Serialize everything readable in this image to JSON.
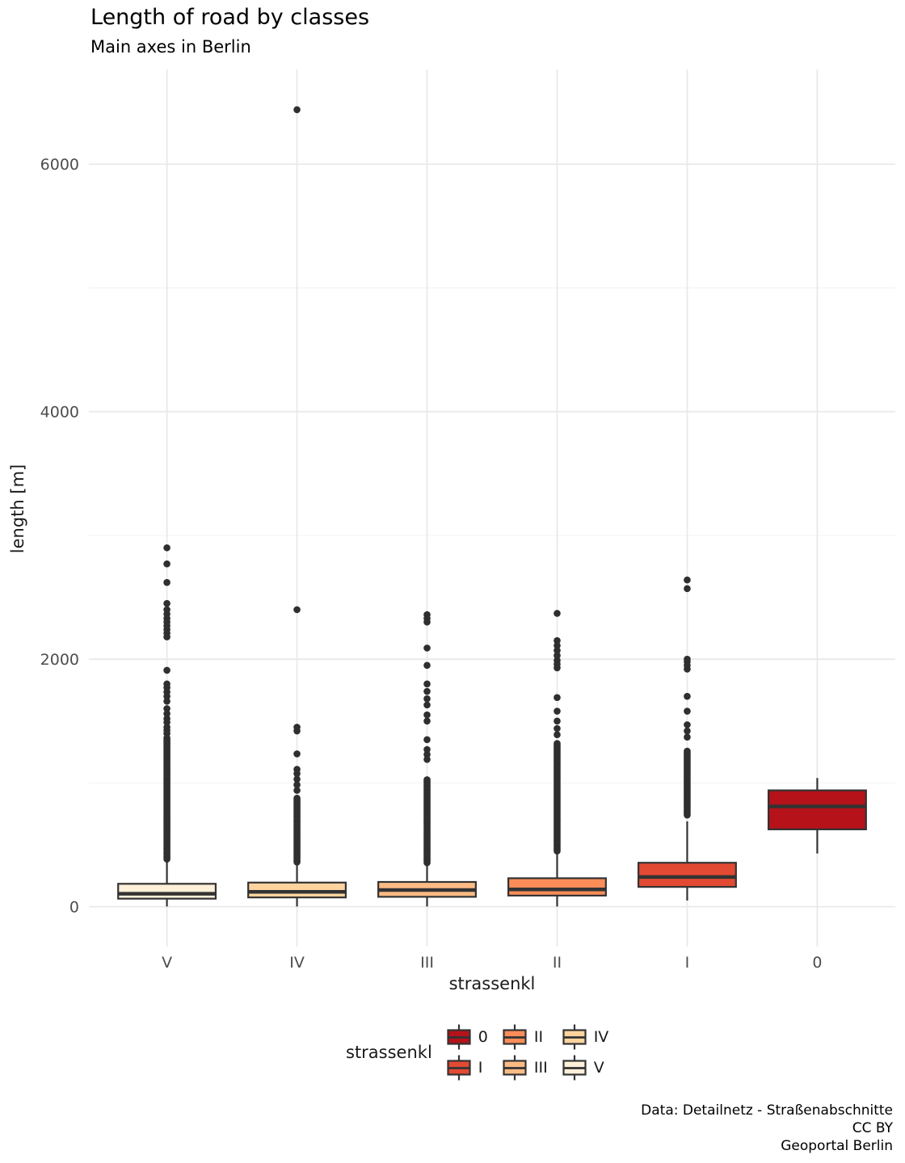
{
  "chart_data": {
    "type": "boxplot",
    "title": "Length of road by classes",
    "subtitle": "Main axes in Berlin",
    "xlabel": "strassenkl",
    "ylabel": "length [m]",
    "caption_lines": [
      "Data: Detailnetz - Straßenabschnitte",
      "CC BY",
      "Geoportal Berlin"
    ],
    "categories": [
      "V",
      "IV",
      "III",
      "II",
      "I",
      "0"
    ],
    "y_ticks": [
      0,
      2000,
      4000,
      6000
    ],
    "y_minor_ticks": [
      1000,
      3000,
      5000
    ],
    "ylim": [
      -322,
      6765
    ],
    "grid": {
      "major_color": "#e9e9e9",
      "minor_color": "#f3f3f3",
      "show": true
    },
    "style": {
      "stroke": "#333333",
      "outlier_color": "#2f2f2f",
      "tick_label_color": "#4d4d4d",
      "text_color": "#1a1a1a"
    },
    "legend": {
      "title": "strassenkl",
      "position": "bottom",
      "entries": [
        {
          "label": "0",
          "color": "#b5121a"
        },
        {
          "label": "I",
          "color": "#e34a33"
        },
        {
          "label": "II",
          "color": "#fc8d59"
        },
        {
          "label": "III",
          "color": "#fdbb84"
        },
        {
          "label": "IV",
          "color": "#fdd49e"
        },
        {
          "label": "V",
          "color": "#fef0d9"
        }
      ]
    },
    "series": [
      {
        "category": "V",
        "color": "#fef0d9",
        "whisker_low": 2,
        "q1": 65,
        "median": 105,
        "q3": 185,
        "whisker_high": 360,
        "outlier_ranges": [
          [
            385,
            1370,
            11
          ]
        ],
        "outliers": [
          1400,
          1425,
          1450,
          1490,
          1520,
          1560,
          1600,
          1660,
          1700,
          1735,
          1770,
          1800,
          1910,
          2180,
          2210,
          2240,
          2270,
          2300,
          2330,
          2365,
          2400,
          2450,
          2620,
          2770,
          2900
        ]
      },
      {
        "category": "IV",
        "color": "#fdd49e",
        "whisker_low": 2,
        "q1": 75,
        "median": 120,
        "q3": 195,
        "whisker_high": 345,
        "outlier_ranges": [
          [
            360,
            880,
            11
          ]
        ],
        "outliers": [
          940,
          985,
          1030,
          1075,
          1110,
          1235,
          1420,
          1450,
          2400,
          6440
        ]
      },
      {
        "category": "III",
        "color": "#fdbb84",
        "whisker_low": 2,
        "q1": 80,
        "median": 135,
        "q3": 200,
        "whisker_high": 350,
        "outlier_ranges": [
          [
            355,
            1030,
            11
          ]
        ],
        "outliers": [
          1190,
          1230,
          1270,
          1350,
          1500,
          1550,
          1630,
          1680,
          1740,
          1800,
          1950,
          2090,
          2300,
          2330,
          2360
        ]
      },
      {
        "category": "II",
        "color": "#fc8d59",
        "whisker_low": 2,
        "q1": 90,
        "median": 140,
        "q3": 230,
        "whisker_high": 430,
        "outlier_ranges": [
          [
            450,
            1320,
            11
          ]
        ],
        "outliers": [
          1390,
          1440,
          1500,
          1580,
          1690,
          1930,
          1960,
          1990,
          2030,
          2070,
          2110,
          2150,
          2370
        ]
      },
      {
        "category": "I",
        "color": "#e34a33",
        "whisker_low": 50,
        "q1": 160,
        "median": 240,
        "q3": 355,
        "whisker_high": 690,
        "outlier_ranges": [
          [
            740,
            1260,
            11
          ]
        ],
        "outliers": [
          1370,
          1420,
          1470,
          1580,
          1700,
          1920,
          1950,
          1980,
          2000,
          2570,
          2640
        ]
      },
      {
        "category": "0",
        "color": "#b5121a",
        "whisker_low": 430,
        "q1": 625,
        "median": 810,
        "q3": 940,
        "whisker_high": 1040,
        "outlier_ranges": [],
        "outliers": []
      }
    ]
  }
}
